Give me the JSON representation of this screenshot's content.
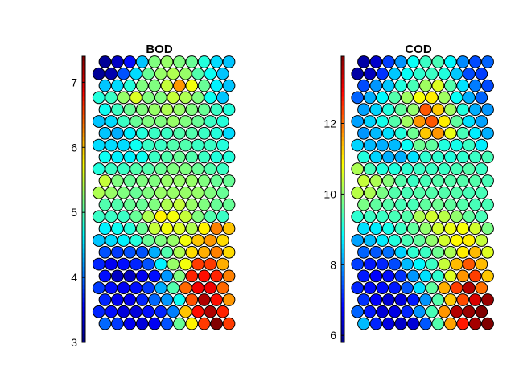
{
  "chart_data": [
    {
      "type": "heatmap",
      "title": "BOD",
      "colormap": "jet",
      "colorbar": {
        "min": 3,
        "max": 7.4,
        "ticks": [
          3,
          4,
          5,
          6,
          7
        ],
        "tick_labels": [
          "3",
          "4",
          "5",
          "6",
          "7"
        ]
      },
      "rows": [
        [
          3.1,
          3.3,
          3.6,
          4.4,
          5.2,
          5.3,
          5.2,
          5.1,
          4.8,
          4.5,
          4.4
        ],
        [
          3.1,
          3.2,
          3.9,
          4.5,
          5.1,
          5.3,
          5.4,
          5.3,
          5.0,
          4.7,
          4.4
        ],
        [
          4.4,
          4.5,
          4.8,
          5.2,
          5.2,
          5.5,
          6.2,
          5.7,
          5.1,
          4.6,
          4.4
        ],
        [
          4.8,
          4.9,
          5.3,
          5.6,
          5.2,
          5.2,
          5.5,
          5.4,
          5.2,
          4.7,
          4.4
        ],
        [
          4.7,
          4.9,
          5.1,
          5.2,
          5.3,
          5.4,
          5.3,
          5.2,
          5.1,
          4.9,
          4.8
        ],
        [
          4.4,
          4.5,
          4.9,
          5.1,
          5.2,
          5.2,
          5.3,
          5.2,
          5.1,
          4.9,
          4.8
        ],
        [
          4.4,
          4.3,
          4.6,
          4.8,
          4.9,
          4.9,
          5.0,
          5.0,
          4.9,
          4.8,
          4.5
        ],
        [
          4.5,
          4.5,
          4.5,
          4.7,
          4.9,
          4.9,
          5.0,
          5.0,
          4.9,
          4.9,
          4.8
        ],
        [
          4.7,
          4.6,
          4.6,
          4.7,
          4.9,
          5.0,
          5.1,
          5.0,
          4.9,
          4.8,
          4.8
        ],
        [
          4.8,
          4.9,
          4.9,
          5.0,
          5.0,
          5.1,
          5.2,
          5.2,
          5.1,
          5.0,
          4.9
        ],
        [
          5.5,
          5.2,
          5.1,
          5.2,
          5.2,
          5.3,
          5.3,
          5.3,
          5.2,
          5.1,
          5.1
        ],
        [
          5.4,
          5.3,
          5.2,
          5.1,
          5.2,
          5.3,
          5.3,
          5.3,
          5.3,
          5.2,
          5.1
        ],
        [
          5.0,
          5.0,
          5.1,
          5.1,
          5.2,
          5.4,
          5.5,
          5.3,
          5.2,
          5.1,
          5.1
        ],
        [
          4.9,
          4.9,
          4.9,
          5.1,
          5.4,
          5.8,
          5.7,
          5.5,
          5.2,
          5.0,
          4.9
        ],
        [
          4.6,
          4.7,
          4.8,
          5.1,
          5.5,
          5.7,
          5.6,
          5.4,
          5.8,
          6.3,
          6.0
        ],
        [
          4.4,
          4.5,
          4.6,
          4.8,
          5.1,
          5.2,
          5.3,
          5.7,
          6.0,
          6.2,
          5.9
        ],
        [
          3.9,
          3.8,
          3.9,
          3.9,
          4.3,
          5.0,
          5.4,
          5.9,
          6.1,
          6.3,
          5.9
        ],
        [
          3.7,
          3.5,
          3.6,
          3.7,
          3.9,
          4.6,
          5.3,
          5.7,
          6.6,
          6.6,
          6.1
        ],
        [
          3.6,
          3.3,
          3.3,
          3.5,
          3.6,
          4.2,
          5.2,
          6.7,
          6.8,
          6.7,
          6.3
        ],
        [
          3.8,
          3.6,
          3.5,
          3.6,
          3.8,
          4.3,
          5.0,
          6.4,
          6.9,
          6.9,
          6.4
        ],
        [
          3.7,
          3.5,
          3.5,
          3.7,
          4.0,
          4.2,
          4.7,
          6.5,
          7.2,
          6.8,
          6.2
        ],
        [
          3.7,
          3.6,
          3.4,
          3.4,
          3.6,
          3.7,
          4.1,
          6.0,
          6.8,
          7.2,
          6.7
        ],
        [
          4.0,
          3.8,
          3.5,
          3.4,
          3.5,
          3.9,
          5.1,
          5.8,
          6.6,
          7.4,
          6.6
        ]
      ]
    },
    {
      "type": "heatmap",
      "title": "COD",
      "colormap": "jet",
      "colorbar": {
        "min": 5.8,
        "max": 13.9,
        "ticks": [
          6,
          8,
          10,
          12
        ],
        "tick_labels": [
          "6",
          "8",
          "10",
          "12"
        ]
      },
      "rows": [
        [
          6.1,
          6.4,
          7.3,
          8.0,
          8.9,
          9.3,
          9.4,
          8.8,
          7.9,
          7.4,
          7.6
        ],
        [
          6.1,
          6.3,
          7.2,
          8.4,
          8.9,
          9.2,
          9.3,
          9.1,
          8.4,
          7.4,
          7.3
        ],
        [
          7.4,
          8.0,
          8.4,
          9.1,
          9.4,
          10.1,
          10.6,
          9.5,
          8.6,
          7.8,
          7.4
        ],
        [
          7.6,
          8.2,
          8.8,
          9.5,
          10.1,
          10.8,
          11.0,
          10.1,
          8.9,
          8.2,
          7.6
        ],
        [
          8.1,
          8.5,
          9.1,
          9.6,
          10.0,
          12.2,
          11.3,
          10.1,
          9.1,
          8.2,
          8.0
        ],
        [
          8.1,
          8.5,
          9.0,
          9.5,
          10.1,
          11.7,
          12.2,
          11.0,
          9.6,
          8.6,
          8.1
        ],
        [
          8.0,
          8.3,
          8.6,
          9.1,
          9.7,
          11.3,
          11.7,
          10.7,
          9.4,
          8.7,
          8.2
        ],
        [
          8.5,
          8.3,
          8.2,
          8.3,
          8.9,
          9.7,
          9.6,
          9.1,
          9.0,
          9.3,
          8.7
        ],
        [
          9.1,
          8.5,
          8.2,
          8.2,
          8.6,
          9.2,
          9.2,
          9.1,
          9.2,
          9.3,
          9.4
        ],
        [
          10.2,
          9.4,
          9.1,
          9.1,
          9.2,
          9.3,
          9.3,
          9.3,
          9.4,
          9.5,
          9.3
        ],
        [
          10.4,
          10.2,
          9.9,
          9.5,
          9.3,
          9.4,
          9.5,
          9.5,
          9.5,
          9.5,
          9.4
        ],
        [
          10.3,
          10.2,
          9.8,
          9.5,
          9.4,
          9.5,
          9.5,
          9.5,
          9.5,
          9.4,
          9.4
        ],
        [
          9.8,
          9.6,
          9.5,
          9.4,
          9.4,
          9.6,
          9.7,
          9.6,
          9.5,
          9.4,
          9.4
        ],
        [
          9.2,
          9.3,
          9.3,
          9.4,
          9.5,
          10.2,
          10.5,
          10.3,
          10.0,
          9.6,
          9.4
        ],
        [
          8.6,
          8.7,
          9.0,
          9.3,
          9.6,
          10.0,
          10.5,
          10.7,
          10.8,
          10.5,
          9.8
        ],
        [
          8.1,
          8.3,
          8.7,
          9.1,
          9.4,
          9.6,
          10.0,
          10.5,
          10.9,
          11.0,
          10.4
        ],
        [
          7.6,
          7.5,
          7.7,
          8.5,
          9.2,
          9.3,
          9.7,
          10.2,
          11.0,
          11.4,
          10.6
        ],
        [
          7.3,
          7.0,
          7.1,
          7.4,
          8.3,
          8.8,
          9.3,
          10.4,
          11.4,
          12.2,
          11.4
        ],
        [
          7.0,
          6.8,
          6.9,
          7.2,
          8.0,
          8.6,
          9.2,
          10.6,
          11.7,
          12.4,
          11.3
        ],
        [
          7.1,
          6.9,
          6.9,
          7.0,
          7.5,
          8.6,
          9.6,
          11.5,
          12.4,
          13.5,
          12.0
        ],
        [
          7.2,
          6.8,
          6.5,
          6.6,
          7.0,
          8.0,
          9.5,
          11.3,
          12.3,
          13.2,
          13.7
        ],
        [
          7.6,
          7.0,
          6.5,
          6.6,
          7.1,
          8.0,
          9.4,
          11.7,
          13.5,
          13.7,
          13.9
        ],
        [
          8.3,
          7.1,
          6.6,
          6.4,
          6.5,
          7.5,
          9.5,
          11.6,
          12.7,
          13.6,
          13.9
        ]
      ]
    }
  ]
}
